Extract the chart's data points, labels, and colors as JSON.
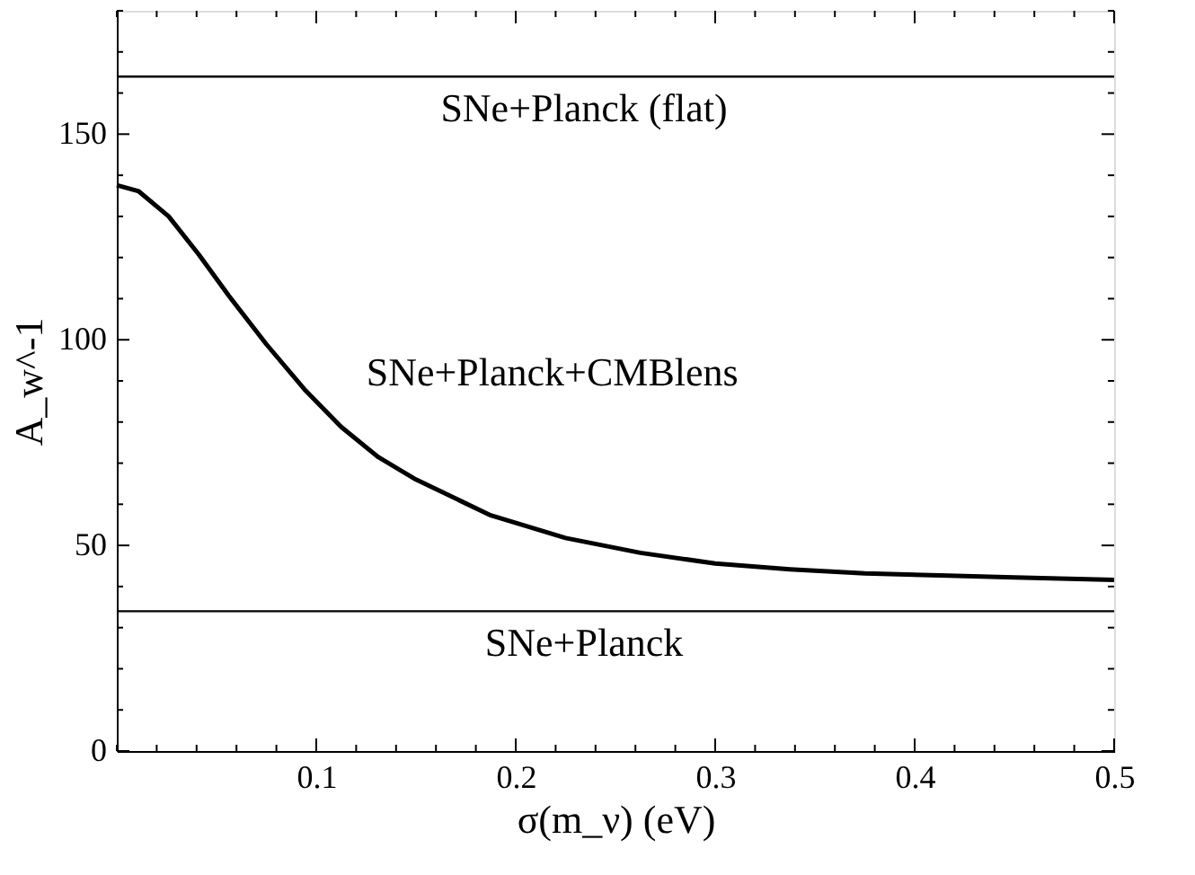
{
  "chart_data": {
    "type": "line",
    "xlabel": "σ(m_ν) (eV)",
    "ylabel": "A_w^-1",
    "x": [
      0,
      0.011,
      0.026,
      0.041,
      0.056,
      0.075,
      0.094,
      0.1125,
      0.131,
      0.15,
      0.1875,
      0.225,
      0.2625,
      0.3,
      0.3375,
      0.375,
      0.4125,
      0.45,
      0.5
    ],
    "series": [
      {
        "name": "SNe+Planck+CMBlens",
        "color": "#000000",
        "values": [
          137.6,
          136.1,
          130,
          120.8,
          110.8,
          98.9,
          88,
          78.8,
          71.5,
          66,
          57.3,
          51.8,
          48.2,
          45.6,
          44.2,
          43.2,
          42.7,
          42.2,
          41.6
        ]
      }
    ],
    "xlim": [
      0,
      0.5
    ],
    "ylim": [
      0,
      180
    ],
    "xticks": [
      {
        "value": 0,
        "label": null
      },
      {
        "value": 0.02,
        "label": null
      },
      {
        "value": 0.04,
        "label": null
      },
      {
        "value": 0.06,
        "label": null
      },
      {
        "value": 0.08,
        "label": null
      },
      0.1,
      {
        "value": 0.12,
        "label": null
      },
      {
        "value": 0.14,
        "label": null
      },
      {
        "value": 0.16,
        "label": null
      },
      {
        "value": 0.18,
        "label": null
      },
      0.2,
      {
        "value": 0.22,
        "label": null
      },
      {
        "value": 0.24,
        "label": null
      },
      {
        "value": 0.26,
        "label": null
      },
      {
        "value": 0.28,
        "label": null
      },
      0.3,
      {
        "value": 0.32,
        "label": null
      },
      {
        "value": 0.34,
        "label": null
      },
      {
        "value": 0.36,
        "label": null
      },
      {
        "value": 0.38,
        "label": null
      },
      0.4,
      {
        "value": 0.42,
        "label": null
      },
      {
        "value": 0.44,
        "label": null
      },
      {
        "value": 0.46,
        "label": null
      },
      {
        "value": 0.48,
        "label": null
      },
      0.5
    ],
    "yticks": [
      0,
      {
        "value": 10,
        "label": null
      },
      {
        "value": 20,
        "label": null
      },
      {
        "value": 30,
        "label": null
      },
      {
        "value": 40,
        "label": null
      },
      50,
      {
        "value": 60,
        "label": null
      },
      {
        "value": 70,
        "label": null
      },
      {
        "value": 80,
        "label": null
      },
      {
        "value": 90,
        "label": null
      },
      100,
      {
        "value": 110,
        "label": null
      },
      {
        "value": 120,
        "label": null
      },
      {
        "value": 130,
        "label": null
      },
      {
        "value": 140,
        "label": null
      },
      150,
      {
        "value": 160,
        "label": null
      },
      {
        "value": 170,
        "label": null
      },
      {
        "value": 180,
        "label": null
      }
    ],
    "ref_lines": [
      {
        "axis": "y",
        "value": 164,
        "label": "SNe+Planck (flat)",
        "color": "#000000"
      },
      {
        "axis": "y",
        "value": 34,
        "label": "SNe+Planck",
        "color": "#000000"
      }
    ],
    "grid": false,
    "line_style": "solid",
    "marker": "none"
  }
}
